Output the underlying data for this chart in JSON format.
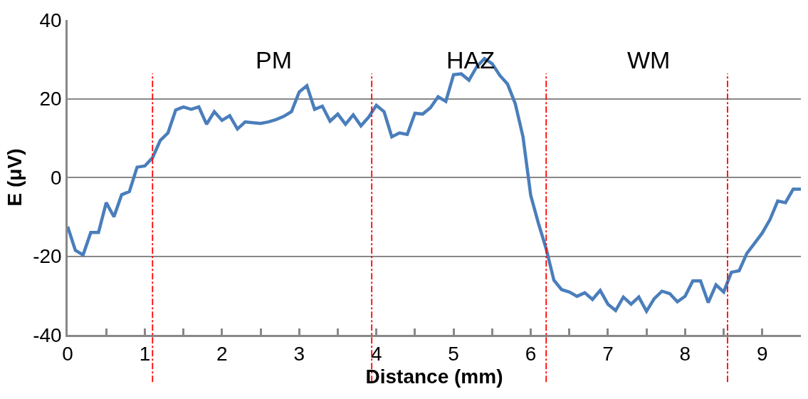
{
  "chart_data": {
    "type": "line",
    "xlabel": "Distance (mm)",
    "ylabel": "E (μV)",
    "x": [
      0,
      0.1,
      0.2,
      0.3,
      0.4,
      0.5,
      0.6,
      0.7,
      0.8,
      0.9,
      1.0,
      1.1,
      1.2,
      1.3,
      1.4,
      1.5,
      1.6,
      1.7,
      1.8,
      1.9,
      2.0,
      2.1,
      2.2,
      2.3,
      2.4,
      2.5,
      2.6,
      2.7,
      2.8,
      2.9,
      3.0,
      3.1,
      3.2,
      3.3,
      3.4,
      3.5,
      3.6,
      3.7,
      3.8,
      3.9,
      4.0,
      4.1,
      4.2,
      4.3,
      4.4,
      4.5,
      4.6,
      4.7,
      4.8,
      4.9,
      5.0,
      5.1,
      5.2,
      5.3,
      5.4,
      5.5,
      5.6,
      5.7,
      5.8,
      5.9,
      6.0,
      6.1,
      6.2,
      6.3,
      6.4,
      6.5,
      6.6,
      6.7,
      6.8,
      6.9,
      7.0,
      7.1,
      7.2,
      7.3,
      7.4,
      7.5,
      7.6,
      7.7,
      7.8,
      7.9,
      8.0,
      8.1,
      8.2,
      8.3,
      8.4,
      8.5,
      8.6,
      8.7,
      8.8,
      8.9,
      9.0,
      9.1,
      9.2,
      9.3,
      9.4,
      9.5
    ],
    "series": [
      {
        "color": "#4a7ebb",
        "values": [
          -12.5,
          -18.5,
          -19.7,
          -14,
          -14,
          -6.4,
          -10,
          -4.4,
          -3.6,
          2.6,
          2.9,
          5,
          9.4,
          11.3,
          17.1,
          17.9,
          17.3,
          17.9,
          13.5,
          16.7,
          14.5,
          15.7,
          12.3,
          14.1,
          13.9,
          13.7,
          14.1,
          14.7,
          15.5,
          16.7,
          21.7,
          23.3,
          17.3,
          18.1,
          14.3,
          16.1,
          13.5,
          15.9,
          13.1,
          15.3,
          18.3,
          16.7,
          10.3,
          11.3,
          10.9,
          16.3,
          16.1,
          17.7,
          20.5,
          19.3,
          26.1,
          26.3,
          24.7,
          28.1,
          30.2,
          28.9,
          25.9,
          23.7,
          18.7,
          10.3,
          -4.6,
          -11.7,
          -18.1,
          -26.1,
          -28.5,
          -29.1,
          -30.2,
          -29.3,
          -31,
          -28.7,
          -32.2,
          -33.8,
          -30.4,
          -32.2,
          -30.4,
          -34,
          -30.8,
          -28.9,
          -29.5,
          -31.6,
          -30.2,
          -26.3,
          -26.3,
          -31.8,
          -27.3,
          -29.1,
          -24.1,
          -23.7,
          -19.3,
          -16.7,
          -14.1,
          -10.7,
          -6,
          -6.4,
          -3,
          -3
        ]
      }
    ],
    "xlim": [
      0,
      9.5
    ],
    "xticks": [
      0,
      {
        "value": 0.5,
        "label": null
      },
      1,
      {
        "value": 1.5,
        "label": null
      },
      2,
      {
        "value": 2.5,
        "label": null
      },
      3,
      {
        "value": 3.5,
        "label": null
      },
      4,
      {
        "value": 4.5,
        "label": null
      },
      5,
      {
        "value": 5.5,
        "label": null
      },
      6,
      {
        "value": 6.5,
        "label": null
      },
      7,
      {
        "value": 7.5,
        "label": null
      },
      8,
      {
        "value": 8.5,
        "label": null
      },
      9
    ],
    "ylim": [
      -40,
      40
    ],
    "yticks": [
      -40,
      -20,
      0,
      20,
      40
    ],
    "grid": "y",
    "marker": "none",
    "line_style": "solid",
    "ref_lines": [
      {
        "axis": "x",
        "value": 1.1,
        "color": "#ff0000",
        "line_style": "dashdot"
      },
      {
        "axis": "x",
        "value": 3.94,
        "color": "#ff0000",
        "line_style": "dashdot"
      },
      {
        "axis": "x",
        "value": 6.2,
        "color": "#ff0000",
        "line_style": "dashdot"
      },
      {
        "axis": "x",
        "value": 8.55,
        "color": "#ff0000",
        "line_style": "dashdot"
      }
    ],
    "annotations": [
      "PM",
      "HAZ",
      "WM"
    ]
  }
}
